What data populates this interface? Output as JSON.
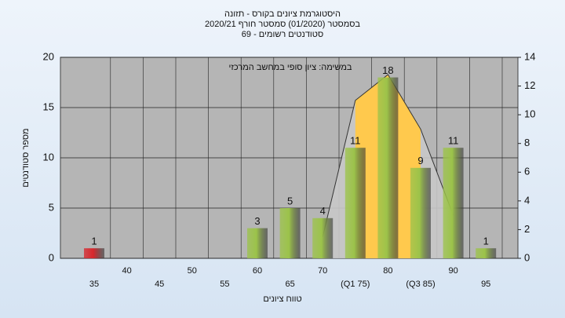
{
  "chart_data": {
    "type": "bar",
    "title": "היסטוגרמת ציונים בקורס - תזונה",
    "subtitle": "בסמסטר (01/2020) סמסטר חורף 2020/21",
    "subtitle2": "סטודנטים רשומים - 69",
    "annotation": "במשימה: ציון סופי במחשב המרכזי",
    "y_label": "מספר סטודנטים",
    "x_label": "טווח ציונים",
    "categories": [
      "35",
      "40",
      "45",
      "50",
      "55",
      "60",
      "65",
      "70",
      "(Q1 75)",
      "80",
      "(Q3 85)",
      "90",
      "95"
    ],
    "series": [
      {
        "values": [
          1,
          0,
          0,
          0,
          0,
          3,
          5,
          4,
          11,
          18,
          9,
          11,
          1
        ],
        "colors": [
          "#d8262c",
          "#9cc34a",
          "#9cc34a",
          "#9cc34a",
          "#9cc34a",
          "#9cc34a",
          "#9cc34a",
          "#9cc34a",
          "#9cc34a",
          "#9cc34a",
          "#9cc34a",
          "#9cc34a",
          "#9cc34a"
        ]
      }
    ],
    "overlay": {
      "type": "area",
      "axis": "y2",
      "values": [
        null,
        null,
        null,
        null,
        null,
        null,
        null,
        1.5,
        11,
        12.8,
        9,
        3,
        null
      ],
      "color": "#ffc94d",
      "outer_color": "#c8c8c8",
      "line_color": "#333333"
    },
    "ylim": [
      0,
      20
    ],
    "yticks": [
      0,
      5,
      10,
      15,
      20
    ],
    "y2lim": [
      0,
      14
    ],
    "y2ticks": [
      0,
      2,
      4,
      6,
      8,
      10,
      12,
      14
    ],
    "grid": true
  }
}
